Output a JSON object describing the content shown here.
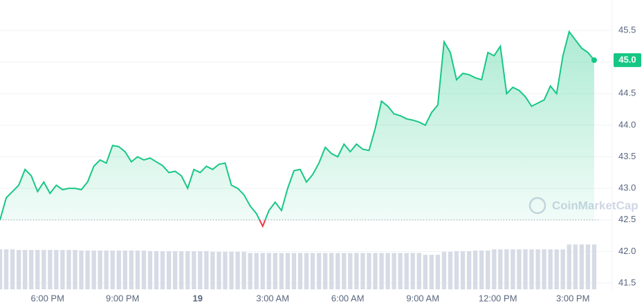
{
  "chart_data": {
    "type": "line",
    "color": "#16c784",
    "down_color": "#ea3943",
    "baseline": 42.5,
    "watermark": "CoinMarketCap",
    "current_price_label": "45.0",
    "xlim": [
      16.1,
      40.1
    ],
    "xticks": [
      {
        "value": 18,
        "label": "6:00 PM"
      },
      {
        "value": 21,
        "label": "9:00 PM"
      },
      {
        "value": 24,
        "label": "19"
      },
      {
        "value": 27,
        "label": "3:00 AM"
      },
      {
        "value": 30,
        "label": "6:00 AM"
      },
      {
        "value": 33,
        "label": "9:00 AM"
      },
      {
        "value": 36,
        "label": "12:00 PM"
      },
      {
        "value": 39,
        "label": "3:00 PM"
      }
    ],
    "ylim": [
      41.5,
      45.5
    ],
    "yticks": [
      41.5,
      {
        "value": 42,
        "label": "42.0"
      },
      42.5,
      {
        "value": 43,
        "label": "43.0"
      },
      43.5,
      {
        "value": 44,
        "label": "44.0"
      },
      44.5,
      {
        "value": 45,
        "label": "45.0"
      },
      45.5
    ],
    "grid": true,
    "x": [
      16.1,
      16.35,
      16.6,
      16.85,
      17.1,
      17.35,
      17.6,
      17.85,
      18.1,
      18.35,
      18.6,
      18.85,
      19.1,
      19.35,
      19.6,
      19.85,
      20.1,
      20.35,
      20.6,
      20.85,
      21.1,
      21.35,
      21.6,
      21.85,
      22.1,
      22.35,
      22.6,
      22.85,
      23.1,
      23.35,
      23.6,
      23.85,
      24.1,
      24.35,
      24.6,
      24.85,
      25.1,
      25.35,
      25.6,
      25.85,
      26.1,
      26.35,
      26.6,
      26.85,
      27.1,
      27.35,
      27.6,
      27.85,
      28.1,
      28.35,
      28.6,
      28.85,
      29.1,
      29.35,
      29.6,
      29.85,
      30.1,
      30.35,
      30.6,
      30.85,
      31.1,
      31.35,
      31.6,
      31.85,
      32.1,
      32.35,
      32.6,
      32.85,
      33.1,
      33.35,
      33.6,
      33.85,
      34.1,
      34.35,
      34.6,
      34.85,
      35.1,
      35.35,
      35.6,
      35.85,
      36.1,
      36.35,
      36.6,
      36.85,
      37.1,
      37.35,
      37.6,
      37.85,
      38.1,
      38.35,
      38.6,
      38.85,
      39.1,
      39.35,
      39.6,
      39.85
    ],
    "values": [
      42.5,
      42.85,
      42.95,
      43.05,
      43.3,
      43.2,
      42.95,
      43.1,
      42.92,
      43.05,
      42.98,
      43.0,
      43.0,
      42.98,
      43.1,
      43.35,
      43.45,
      43.4,
      43.68,
      43.66,
      43.58,
      43.42,
      43.5,
      43.45,
      43.48,
      43.42,
      43.36,
      43.25,
      43.27,
      43.2,
      43.0,
      43.3,
      43.25,
      43.35,
      43.3,
      43.38,
      43.4,
      43.05,
      43.0,
      42.9,
      42.72,
      42.6,
      42.4,
      42.65,
      42.78,
      42.65,
      43.0,
      43.28,
      43.3,
      43.1,
      43.22,
      43.4,
      43.65,
      43.55,
      43.5,
      43.7,
      43.58,
      43.7,
      43.62,
      43.6,
      43.95,
      44.38,
      44.3,
      44.18,
      44.15,
      44.1,
      44.08,
      44.05,
      44.0,
      44.2,
      44.32,
      45.32,
      45.15,
      44.72,
      44.82,
      44.8,
      44.75,
      44.72,
      45.15,
      45.1,
      45.25,
      44.5,
      44.6,
      44.55,
      44.45,
      44.3,
      44.35,
      44.4,
      44.62,
      44.5,
      45.1,
      45.48,
      45.35,
      45.22,
      45.15,
      45.03
    ],
    "volume_lim": [
      0,
      80
    ],
    "volume": [
      66,
      66,
      66,
      65,
      65,
      65,
      65,
      65,
      65,
      65,
      65,
      65,
      65,
      64,
      64,
      64,
      64,
      64,
      64,
      64,
      64,
      64,
      64,
      64,
      63,
      63,
      63,
      63,
      63,
      63,
      63,
      63,
      63,
      63,
      62,
      62,
      62,
      62,
      62,
      62,
      60,
      60,
      60,
      60,
      60,
      60,
      60,
      60,
      60,
      60,
      60,
      60,
      60,
      60,
      60,
      60,
      60,
      60,
      60,
      60,
      60,
      60,
      60,
      60,
      60,
      60,
      60,
      60,
      57,
      57,
      57,
      62,
      62,
      63,
      63,
      63,
      64,
      64,
      64,
      66,
      66,
      66,
      66,
      66,
      66,
      66,
      66,
      66,
      66,
      66,
      66,
      74,
      74,
      74,
      74,
      74
    ]
  }
}
